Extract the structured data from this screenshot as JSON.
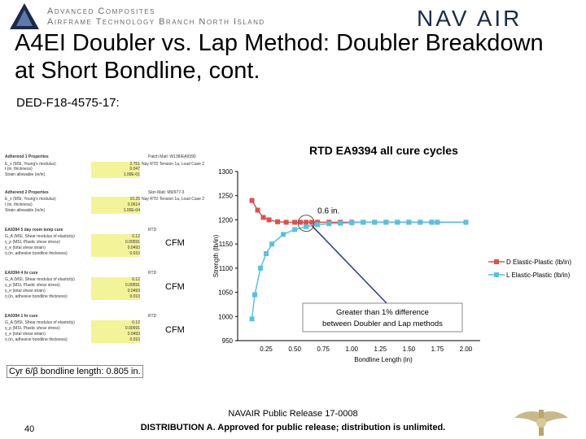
{
  "header": {
    "org_line1": "Advanced Composites",
    "org_line2": "Airframe Technology Branch North Island",
    "logo_text": "NAV AIR"
  },
  "slide": {
    "title_line1": "A4EI Doubler vs. Lap Method: Doubler Breakdown",
    "title_line2": "at Short Bondline, cont.",
    "subtitle": "DED-F18-4575-17:",
    "page_number": "40"
  },
  "spreadsheet": {
    "rows": [
      {
        "label": "Adherend 1 Properties",
        "note": "Patch Matl: W138/EA9390",
        "val": ""
      },
      {
        "label": "E_x (MSI, Young's modulus)",
        "note": "Nay RTD Tension 1a, Load Case 2",
        "val": "2.751"
      },
      {
        "label": "t (in, thickness)",
        "note": "",
        "val": "0.047"
      },
      {
        "label": "Strain allowable (in/in)",
        "note": "",
        "val": "1.00E-01"
      },
      {
        "label": "Adherend 2 Properties",
        "note": "Skin Matl: M9/977-3",
        "val": ""
      },
      {
        "label": "E_x (MSI, Young's modulus)",
        "note": "Nay RTD Tension 1a, Load Case 2",
        "val": "10.25"
      },
      {
        "label": "t (in, thickness)",
        "note": "",
        "val": "0.0614"
      },
      {
        "label": "Strain allowable (in/in)",
        "note": "",
        "val": "1.00E-04"
      },
      {
        "label": "EA9394 5 day room temp cure",
        "note": "RTD",
        "val": ""
      },
      {
        "label": "G_A (MSI, Shear modulus of elasticity)",
        "note": "",
        "val": "0.12"
      },
      {
        "label": "γ_p (MSI, Plastic shear stress)",
        "note": "",
        "val": "0.00591"
      },
      {
        "label": "γ_e (total shear strain)",
        "note": "",
        "val": "0.0493"
      },
      {
        "label": "η (in, adhesive bondline thickness)",
        "note": "",
        "val": "0.010"
      },
      {
        "label": "EA9394 4 hr cure",
        "note": "RTD",
        "val": ""
      },
      {
        "label": "G_A (MSI, Shear modulus of elasticity)",
        "note": "",
        "val": "0.12"
      },
      {
        "label": "γ_p (MSI, Plastic shear stress)",
        "note": "",
        "val": "0.00591"
      },
      {
        "label": "γ_e (total shear strain)",
        "note": "",
        "val": "0.0493"
      },
      {
        "label": "η (in, adhesive bondline thickness)",
        "note": "",
        "val": "0.010"
      },
      {
        "label": "EA9394 1 hr cure",
        "note": "RTD",
        "val": ""
      },
      {
        "label": "G_A (MSI, Shear modulus of elasticity)",
        "note": "",
        "val": "0.12"
      },
      {
        "label": "γ_p (MSI, Plastic shear stress)",
        "note": "",
        "val": "0.00591"
      },
      {
        "label": "γ_e (total shear strain)",
        "note": "",
        "val": "0.0493"
      },
      {
        "label": "η (in, adhesive bondline thickness)",
        "note": "",
        "val": "0.010"
      }
    ],
    "cfm_labels": [
      "CFM",
      "CFM",
      "CFM"
    ],
    "footnote": "Cyr 6/β bondline length: 0.805 in."
  },
  "chart_data": {
    "type": "line",
    "title": "RTD EA9394 all cure cycles",
    "xlabel": "Bondline Length (in)",
    "ylabel": "Strength (lb/in)",
    "xlim": [
      0,
      2.125
    ],
    "ylim": [
      950,
      1300
    ],
    "x_ticks": [
      "0.25",
      "0.50",
      "0.75",
      "1.00",
      "1.25",
      "1.50",
      "1.75",
      "2.00"
    ],
    "y_ticks": [
      "950",
      "1000",
      "1050",
      "1100",
      "1150",
      "1200",
      "1250",
      "1300"
    ],
    "series": [
      {
        "name": "D Elastic-Plastic (lb/in)",
        "color": "#d9534f",
        "x": [
          0.125,
          0.175,
          0.225,
          0.275,
          0.35,
          0.425,
          0.5,
          0.55,
          0.6,
          0.65,
          0.7,
          0.8,
          0.9,
          1.0,
          1.1,
          1.2,
          1.3,
          1.4,
          1.5,
          1.6,
          1.7,
          1.75,
          2.0
        ],
        "y": [
          1240,
          1220,
          1205,
          1200,
          1196,
          1195,
          1195,
          1195,
          1195,
          1195,
          1195,
          1195,
          1195,
          1195,
          1195,
          1195,
          1195,
          1195,
          1195,
          1195,
          1195,
          1195,
          1195
        ]
      },
      {
        "name": "L Elastic-Plastic (lb/in)",
        "color": "#5bc0de",
        "x": [
          0.125,
          0.15,
          0.2,
          0.25,
          0.3,
          0.4,
          0.5,
          0.6,
          0.7,
          0.8,
          0.9,
          1.0,
          1.1,
          1.2,
          1.3,
          1.4,
          1.5,
          1.6,
          1.7,
          1.75,
          2.0
        ],
        "y": [
          995,
          1045,
          1100,
          1130,
          1150,
          1170,
          1180,
          1186,
          1190,
          1192,
          1193,
          1194,
          1195,
          1195,
          1195,
          1195,
          1195,
          1195,
          1195,
          1195,
          1195
        ]
      }
    ],
    "annotations": {
      "callout_marker": "0.6 in.",
      "callout_text": "Greater than 1% difference between Doubler and Lap methods"
    },
    "legend_position": "right"
  },
  "footer": {
    "release_line1": "NAVAIR Public Release 17-0008",
    "release_line2": "DISTRIBUTION A. Approved for public release; distribution is unlimited."
  },
  "colors": {
    "doubler": "#d9534f",
    "lap": "#5bc0de",
    "callout": "#2e3a8c",
    "banner_text": "#6a6a6a"
  }
}
